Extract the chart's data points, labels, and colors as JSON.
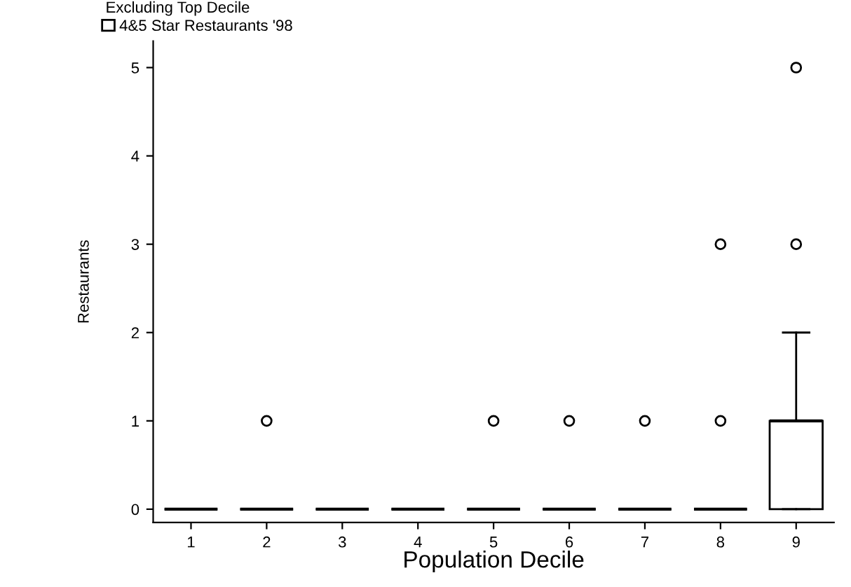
{
  "chart_data": {
    "type": "box",
    "title": "Excluding Top Decile",
    "xlabel": "Population Decile",
    "ylabel": "Restaurants",
    "categories": [
      "1",
      "2",
      "3",
      "4",
      "5",
      "6",
      "7",
      "8",
      "9"
    ],
    "ylim": [
      -0.15,
      5.3
    ],
    "yticks": [
      0,
      1,
      2,
      3,
      4,
      5
    ],
    "grid": false,
    "legend": "top left",
    "marker": "circle",
    "series": [
      {
        "name": "4&5 Star Restaurants '98",
        "color": "#000000",
        "boxes": [
          {
            "low": 0,
            "q1": 0,
            "median": 0,
            "q3": 0,
            "high": 0
          },
          {
            "low": 0,
            "q1": 0,
            "median": 0,
            "q3": 0,
            "high": 0,
            "outliers": [
              1
            ]
          },
          {
            "low": 0,
            "q1": 0,
            "median": 0,
            "q3": 0,
            "high": 0
          },
          {
            "low": 0,
            "q1": 0,
            "median": 0,
            "q3": 0,
            "high": 0
          },
          {
            "low": 0,
            "q1": 0,
            "median": 0,
            "q3": 0,
            "high": 0,
            "outliers": [
              1
            ]
          },
          {
            "low": 0,
            "q1": 0,
            "median": 0,
            "q3": 0,
            "high": 0,
            "outliers": [
              1
            ]
          },
          {
            "low": 0,
            "q1": 0,
            "median": 0,
            "q3": 0,
            "high": 0,
            "outliers": [
              1
            ]
          },
          {
            "low": 0,
            "q1": 0,
            "median": 0,
            "q3": 0,
            "high": 0,
            "outliers": [
              1,
              3
            ]
          },
          {
            "low": 0,
            "q1": 0,
            "median": 1,
            "q3": 1,
            "high": 2,
            "outliers": [
              3,
              5
            ]
          }
        ]
      }
    ]
  }
}
